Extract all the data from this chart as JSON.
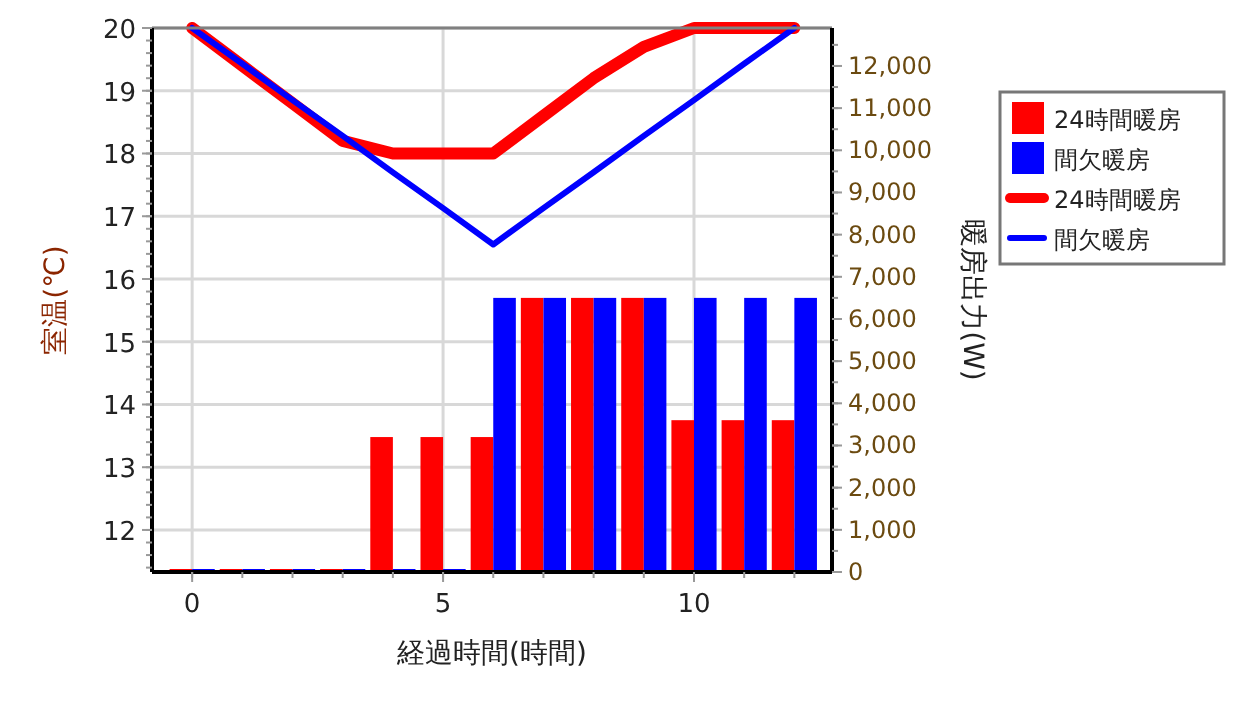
{
  "chart_data": {
    "type": "bar",
    "xlabel": "経過時間(時間)",
    "ylabel": "室温(℃)",
    "y2label": "暖房出力(W)",
    "x": [
      0,
      1,
      2,
      3,
      4,
      5,
      6,
      7,
      8,
      9,
      10,
      11,
      12
    ],
    "xlim": [
      -0.8,
      12.75
    ],
    "xticks": [
      0,
      5,
      10
    ],
    "ylim": [
      11.33,
      20
    ],
    "yticks": [
      12,
      13,
      14,
      15,
      16,
      17,
      18,
      19,
      20
    ],
    "y2lim": [
      0,
      12900
    ],
    "y2ticks": [
      {
        "value": 0,
        "label": "0"
      },
      {
        "value": 1000,
        "label": "1,000"
      },
      {
        "value": 2000,
        "label": "2,000"
      },
      {
        "value": 3000,
        "label": "3,000"
      },
      {
        "value": 4000,
        "label": "4,000"
      },
      {
        "value": 5000,
        "label": "5,000"
      },
      {
        "value": 6000,
        "label": "6,000"
      },
      {
        "value": 7000,
        "label": "7,000"
      },
      {
        "value": 8000,
        "label": "8,000"
      },
      {
        "value": 9000,
        "label": "9,000"
      },
      {
        "value": 10000,
        "label": "10,000"
      },
      {
        "value": 11000,
        "label": "11,000"
      },
      {
        "value": 12000,
        "label": "12,000"
      }
    ],
    "grid": true,
    "legend": "right",
    "marker": "none",
    "line_style": "solid",
    "series": [
      {
        "name": "24時間暖房",
        "axis": "y2",
        "color": "#ff0000",
        "values": [
          0,
          0,
          0,
          0,
          3200,
          3200,
          3200,
          6500,
          6500,
          6500,
          3600,
          3600,
          3600
        ]
      },
      {
        "name": "間欠暖房",
        "axis": "y2",
        "color": "#0000ff",
        "values": [
          0,
          0,
          0,
          0,
          0,
          0,
          6500,
          6500,
          6500,
          6500,
          6500,
          6500,
          6500
        ]
      },
      {
        "name": "24時間暖房",
        "type": "line",
        "axis": "y",
        "color": "#ff0000",
        "values": [
          20,
          19.4,
          18.8,
          18.2,
          18,
          18,
          18,
          18.6,
          19.2,
          19.7,
          20,
          20,
          20
        ]
      },
      {
        "name": "間欠暖房",
        "type": "line",
        "axis": "y",
        "color": "#0000ff",
        "values": [
          20,
          19.43,
          18.85,
          18.28,
          17.7,
          17.13,
          16.55,
          17.13,
          17.7,
          18.28,
          18.85,
          19.43,
          20
        ]
      }
    ]
  }
}
